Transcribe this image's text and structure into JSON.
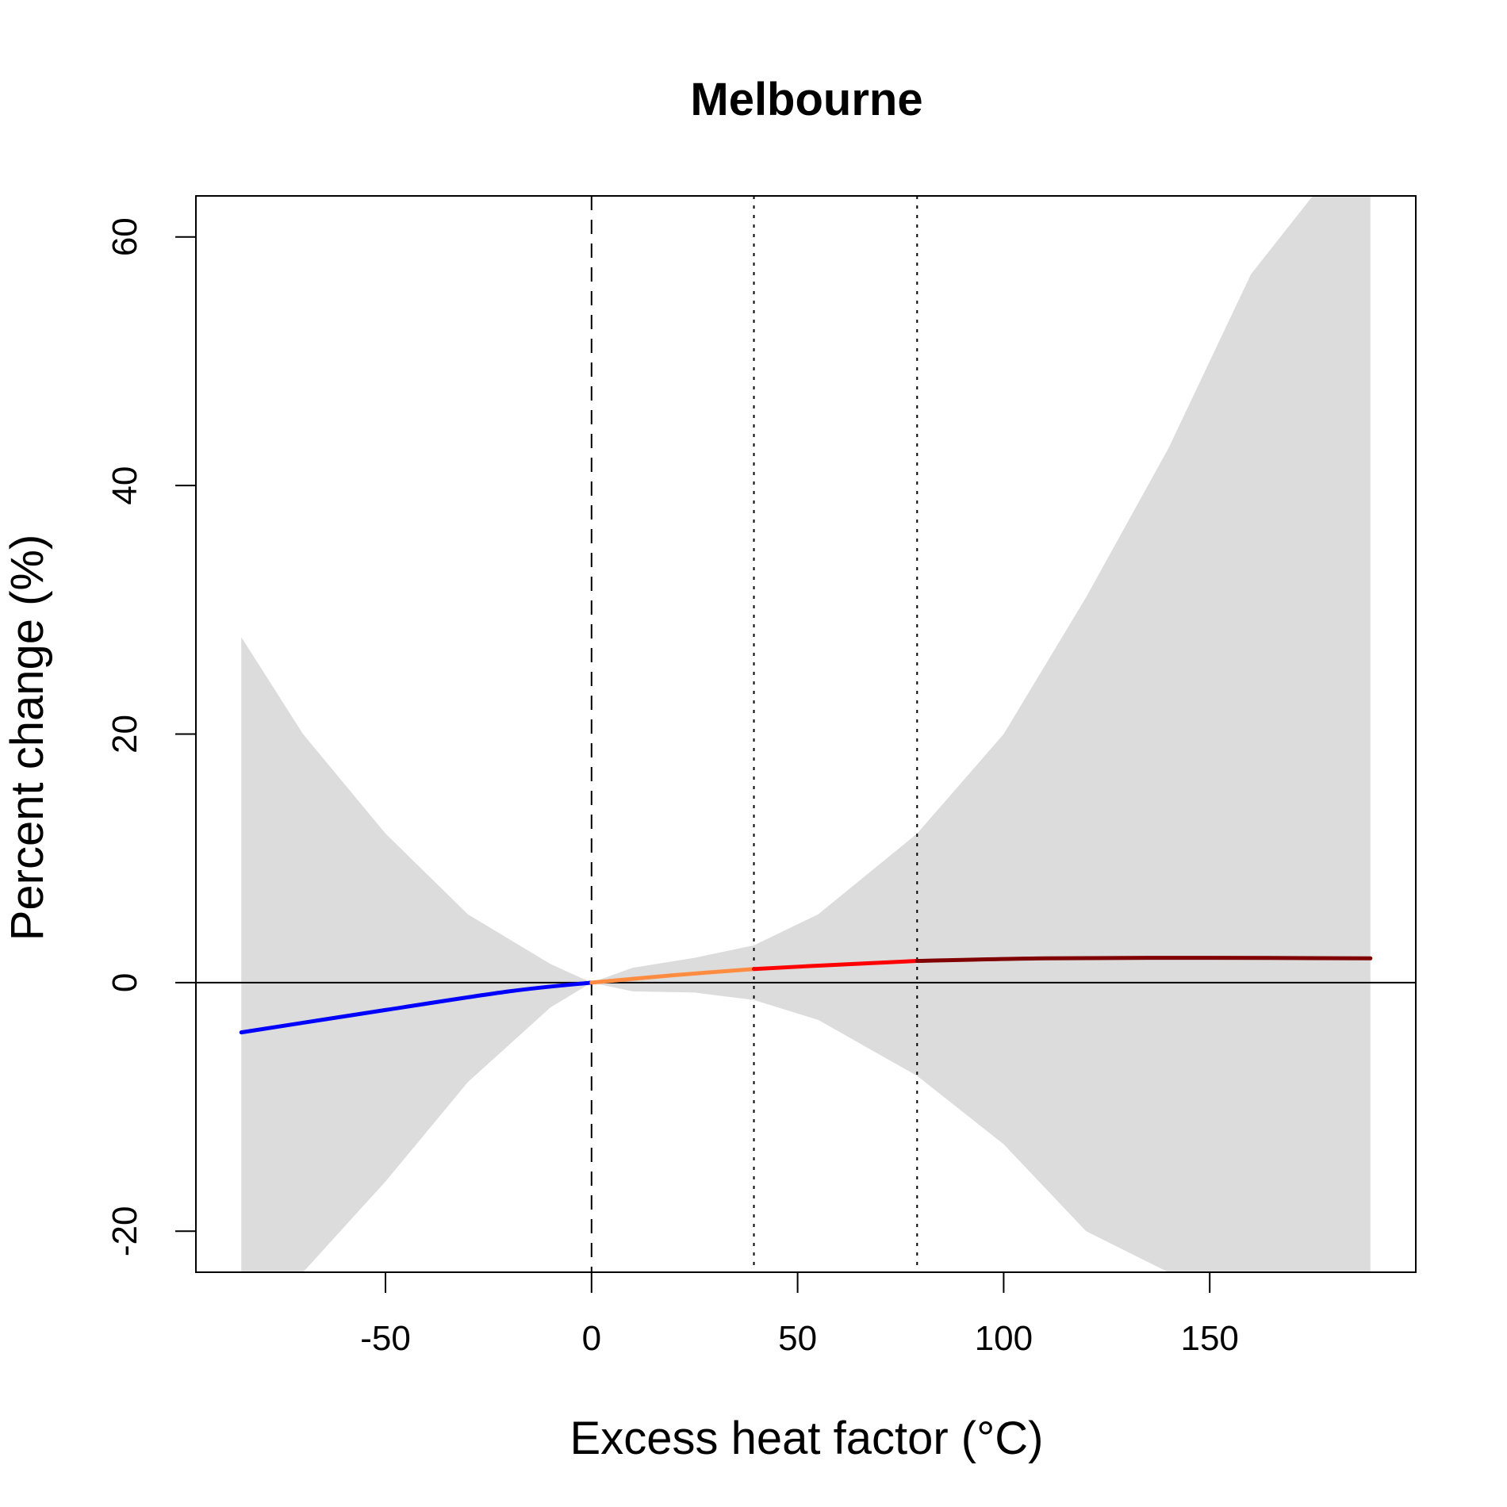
{
  "chart_data": {
    "type": "line",
    "title": "Melbourne",
    "xlabel": "Excess heat factor (°C)",
    "ylabel": "Percent change (%)",
    "xlim": [
      -96,
      200
    ],
    "ylim": [
      -23.3,
      63.3
    ],
    "x_ticks": [
      -50,
      0,
      50,
      100,
      150
    ],
    "x_tick_labels": [
      "-50",
      "0",
      "50",
      "100",
      "150"
    ],
    "y_ticks": [
      -20,
      0,
      20,
      40,
      60
    ],
    "y_tick_labels": [
      "-20",
      "0",
      "20",
      "40",
      "60"
    ],
    "grid": false,
    "legend": "none",
    "reference_lines": [
      {
        "orientation": "horizontal",
        "value": 0,
        "style": "solid"
      },
      {
        "orientation": "vertical",
        "value": 0,
        "style": "dashed"
      },
      {
        "orientation": "vertical",
        "value": 39.4,
        "style": "dotted"
      },
      {
        "orientation": "vertical",
        "value": 79,
        "style": "dotted"
      }
    ],
    "confidence_band": {
      "color": "#dcdcdc",
      "x": [
        -85,
        -70,
        -50,
        -30,
        -10,
        0,
        10,
        25,
        39.4,
        55,
        79,
        100,
        120,
        140,
        160,
        175,
        189
      ],
      "upper": [
        27.8,
        20,
        12,
        5.5,
        1.5,
        0,
        1.2,
        2,
        3,
        5.5,
        12,
        20,
        31,
        43,
        57,
        63.3,
        63.3
      ],
      "lower": [
        -23.3,
        -23.3,
        -16,
        -8,
        -2,
        0,
        -0.7,
        -0.8,
        -1.4,
        -3,
        -7.5,
        -13,
        -20,
        -23.3,
        -23.3,
        -23.3,
        -23.3
      ]
    },
    "series": [
      {
        "color": "#0000ff",
        "x": [
          -85,
          -50,
          -20,
          0
        ],
        "values": [
          -4,
          -2.2,
          -0.7,
          0
        ]
      },
      {
        "color": "#ff8c40",
        "x": [
          0,
          20,
          39.4
        ],
        "values": [
          0,
          0.6,
          1.1
        ]
      },
      {
        "color": "#ff0000",
        "x": [
          39.4,
          60,
          79
        ],
        "values": [
          1.1,
          1.45,
          1.75
        ]
      },
      {
        "color": "#800000",
        "x": [
          79,
          110,
          150,
          189
        ],
        "values": [
          1.75,
          1.95,
          2.0,
          1.95
        ]
      }
    ]
  }
}
